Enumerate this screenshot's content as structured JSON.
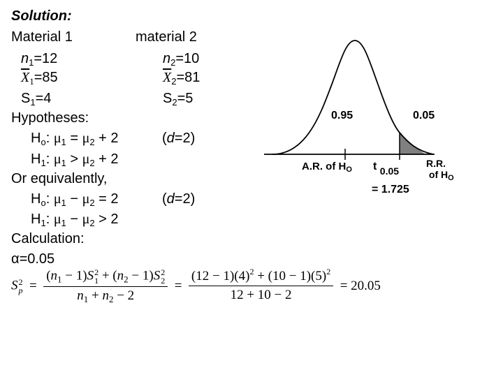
{
  "heading": "Solution:",
  "material1": {
    "title": "Material 1",
    "n": "n1=12",
    "mean": "X1 =85",
    "sd": "S1=4"
  },
  "material2": {
    "title": "material 2",
    "n": "n2=10",
    "mean": "X2=81",
    "sd": "S2=5"
  },
  "hypotheses": {
    "title": "Hypotheses:",
    "h0": "Ho: μ1 = μ2 + 2",
    "h1": "H1: μ1 > μ2 + 2",
    "d_note": "(d=2)",
    "equiv_title": "Or equivalently,",
    "h0_equiv": "Ho: μ1 − μ2 = 2",
    "h1_equiv": "H1: μ1 − μ2 > 2",
    "d_note_2": "(d=2)"
  },
  "calculation": {
    "title": "Calculation:",
    "alpha": "α=0.05",
    "pooled_result": "20.05"
  },
  "diagram": {
    "left_area": "0.95",
    "right_area": "0.05",
    "acceptance_region": "A.R. of Ho",
    "rejection_region_line1": "R.R.",
    "rejection_region_line2": "of Ho",
    "critical_value_label": "t 0.05",
    "critical_value": "= 1.725"
  }
}
